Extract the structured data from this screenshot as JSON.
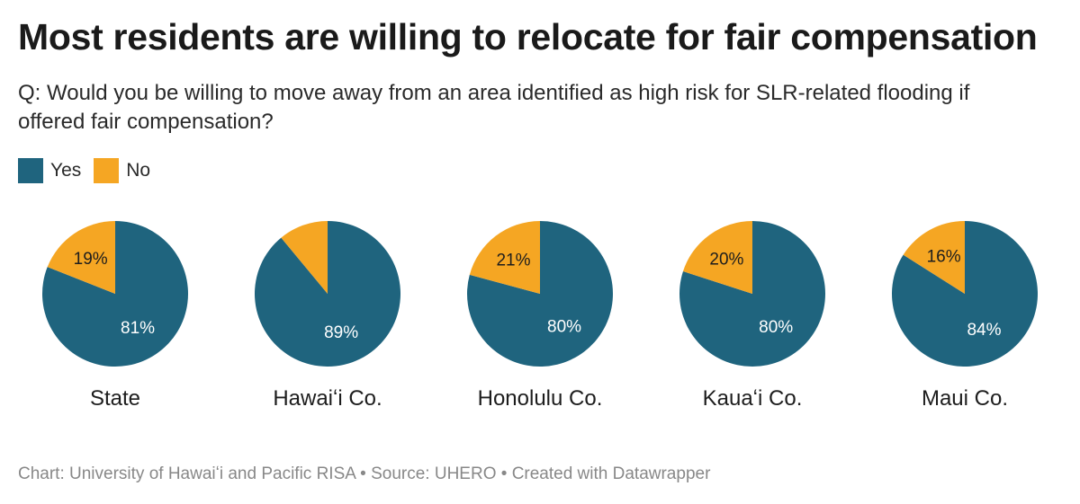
{
  "title": "Most residents are willing to relocate for fair compensation",
  "subtitle": "Q: Would you be willing to move away from an area identified as high risk for SLR-related flooding if offered fair compensation?",
  "legend": [
    {
      "label": "Yes",
      "color": "#1f647e"
    },
    {
      "label": "No",
      "color": "#f5a623"
    }
  ],
  "footer": {
    "chart": "Chart: University of Hawaiʻi and Pacific RISA",
    "separator1": " • ",
    "source": "Source: UHERO",
    "separator2": " • ",
    "created": "Created with Datawrapper"
  },
  "chart_data": {
    "type": "pie",
    "series_names": [
      "Yes",
      "No"
    ],
    "colors": {
      "Yes": "#1f647e",
      "No": "#f5a623"
    },
    "pies": [
      {
        "name": "State",
        "yes": 81,
        "no": 19,
        "yes_label": "81%",
        "no_label": "19%"
      },
      {
        "name": "Hawaiʻi Co.",
        "yes": 89,
        "no": 11,
        "yes_label": "89%",
        "no_label": ""
      },
      {
        "name": "Honolulu Co.",
        "yes": 80,
        "no": 21,
        "yes_label": "80%",
        "no_label": "21%"
      },
      {
        "name": "Kauaʻi Co.",
        "yes": 80,
        "no": 20,
        "yes_label": "80%",
        "no_label": "20%"
      },
      {
        "name": "Maui Co.",
        "yes": 84,
        "no": 16,
        "yes_label": "84%",
        "no_label": "16%"
      }
    ],
    "legend_position": "top-left"
  }
}
